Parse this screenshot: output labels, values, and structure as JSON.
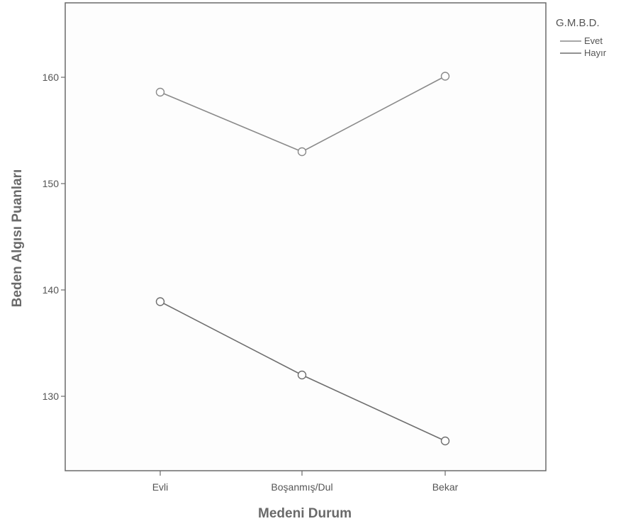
{
  "chart_data": {
    "type": "line",
    "categories": [
      "Evli",
      "Boşanmış/Dul",
      "Bekar"
    ],
    "series": [
      {
        "name": "Evet",
        "values": [
          158.6,
          153.0,
          160.1
        ],
        "color": "#8a8a8a"
      },
      {
        "name": "Hayır",
        "values": [
          138.9,
          132.0,
          125.8
        ],
        "color": "#6e6e6e"
      }
    ],
    "xlabel": "Medeni Durum",
    "ylabel": "Beden Algısı Puanları",
    "ylim": [
      123,
      167
    ],
    "yticks": [
      130,
      140,
      150,
      160
    ],
    "legend": {
      "title": "G.M.B.D.",
      "placement": "top-right",
      "outside_plot": true
    },
    "marker": "open-circle",
    "grid": false
  }
}
